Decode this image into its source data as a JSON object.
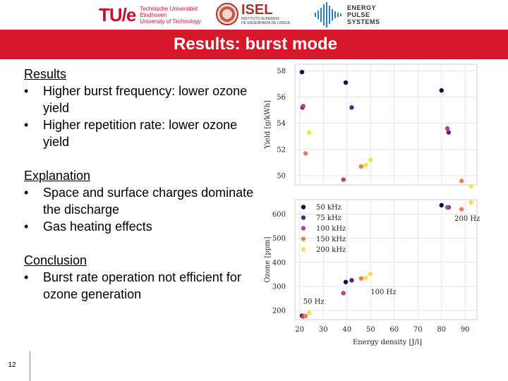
{
  "logos": {
    "tue": {
      "mark": "TU/e",
      "lines": [
        "Technische Universiteit",
        "Eindhoven",
        "University of Technology"
      ]
    },
    "isel": {
      "name": "ISEL",
      "lines": [
        "INSTITUTO SUPERIOR",
        "DE ENGENHARIA DE LISBOA"
      ]
    },
    "eps": {
      "lines": [
        "ENERGY",
        "PULSE",
        "SYSTEMS"
      ]
    }
  },
  "title": "Results: burst mode",
  "content": {
    "results": {
      "heading": "Results",
      "bullets": [
        "Higher burst frequency: lower ozone yield",
        "Higher repetition rate: lower ozone yield"
      ]
    },
    "explanation": {
      "heading": "Explanation",
      "bullets": [
        "Space and surface charges dominate the discharge",
        "Gas heating effects"
      ]
    },
    "conclusion": {
      "heading": "Conclusion",
      "bullets": [
        "Burst rate operation not efficient for ozone generation"
      ]
    }
  },
  "bullet_glyph": "•",
  "page_number": "12",
  "chart_data": [
    {
      "type": "scatter",
      "ylabel": "Yield [g/kWh]",
      "xlim": [
        18,
        95
      ],
      "ylim": [
        49.3,
        58.5
      ],
      "yticks": [
        50,
        52,
        54,
        56,
        58
      ],
      "series": [
        {
          "name": "50 kHz",
          "color": "#1a0b4f",
          "x": [
            21.0,
            39.5,
            80.0
          ],
          "y": [
            57.9,
            57.1,
            56.5
          ]
        },
        {
          "name": "75 kHz",
          "color": "#5a1f8a",
          "x": [
            21.2,
            42.0,
            83.0
          ],
          "y": [
            55.2,
            55.2,
            53.3
          ]
        },
        {
          "name": "100 kHz",
          "color": "#b5408b",
          "x": [
            21.5,
            38.5,
            82.5
          ],
          "y": [
            55.3,
            49.7,
            53.6
          ]
        },
        {
          "name": "150 kHz",
          "color": "#e88057",
          "x": [
            22.5,
            46.0,
            88.5
          ],
          "y": [
            51.7,
            50.7,
            49.6
          ]
        },
        {
          "name": "200 kHz",
          "color": "#f2e34d",
          "x": [
            24.0,
            48.0,
            50.0,
            92.5
          ],
          "y": [
            53.3,
            50.8,
            51.2,
            49.2
          ]
        }
      ]
    },
    {
      "type": "scatter",
      "xlabel": "Energy density [J/l]",
      "ylabel": "Ozone [ppm]",
      "xlim": [
        18,
        95
      ],
      "ylim": [
        162,
        660
      ],
      "xticks": [
        20,
        30,
        40,
        50,
        60,
        70,
        80,
        90
      ],
      "yticks": [
        200,
        300,
        400,
        500,
        600
      ],
      "legend": "top-left",
      "annotations": [
        "50 Hz",
        "100 Hz",
        "200 Hz"
      ],
      "series": [
        {
          "name": "50 kHz",
          "color": "#1a0b4f",
          "x": [
            21.0,
            39.5,
            80.0
          ],
          "y": [
            178,
            318,
            637
          ]
        },
        {
          "name": "75 kHz",
          "color": "#5a1f8a",
          "x": [
            21.2,
            42.0,
            83.0
          ],
          "y": [
            177,
            325,
            628
          ]
        },
        {
          "name": "100 kHz",
          "color": "#b5408b",
          "x": [
            21.5,
            38.5,
            82.5
          ],
          "y": [
            175,
            272,
            628
          ]
        },
        {
          "name": "150 kHz",
          "color": "#e88057",
          "x": [
            22.5,
            46.0,
            88.5
          ],
          "y": [
            177,
            333,
            620
          ]
        },
        {
          "name": "200 kHz",
          "color": "#f2e34d",
          "x": [
            24.0,
            48.0,
            50.0,
            92.5
          ],
          "y": [
            190,
            335,
            352,
            648
          ]
        }
      ]
    }
  ]
}
